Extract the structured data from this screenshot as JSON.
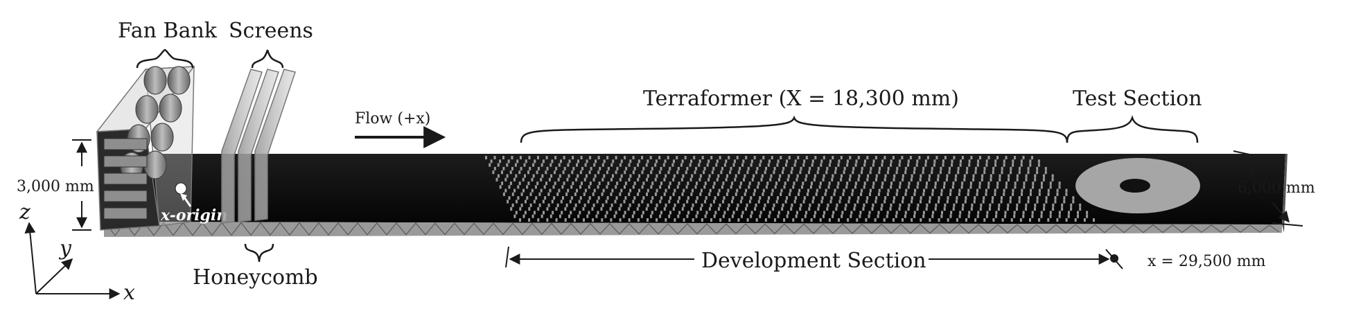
{
  "labels": {
    "fan_bank": "Fan Bank",
    "screens": "Screens",
    "honeycomb": "Honeycomb",
    "flow": "Flow (+x)",
    "terraformer": "Terraformer (X = 18,300 mm)",
    "test_section": "Test Section",
    "development_section": "Development Section",
    "height_dim": "3,000 mm",
    "width_dim": "6,000 mm",
    "x_origin": "x-origin",
    "x_end": "x = 29,500 mm"
  },
  "axes": {
    "x": "x",
    "y": "y",
    "z": "z"
  },
  "colors": {
    "floor": "#0c0c0c",
    "truss": "#8a8a8a",
    "roughness": "#9a9a9a",
    "turntable": "#a8a8a8",
    "ink": "#1a1a1a"
  }
}
